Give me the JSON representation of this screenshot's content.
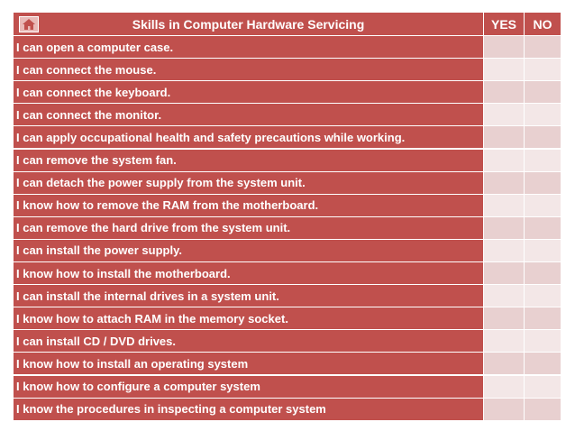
{
  "header": {
    "title": "Skills in Computer Hardware Servicing",
    "yes": "YES",
    "no": "NO"
  },
  "rows": [
    "I can open a computer case.",
    "I can connect the mouse.",
    "I can connect the keyboard.",
    "I can connect the monitor.",
    "I can apply occupational health and safety precautions while working.",
    "I can remove the system fan.",
    "I can detach the power supply from the system unit.",
    "I know how to remove the RAM from the motherboard.",
    "I can remove the hard drive from the system unit.",
    "I can install the power supply.",
    "I know how to install the motherboard.",
    "I can install the internal drives in a system unit.",
    "I know how to attach RAM in the memory socket.",
    "I can install CD / DVD drives.",
    "I know how to install an operating system",
    "I know how to configure a computer system",
    "I know the procedures in inspecting a computer system"
  ]
}
